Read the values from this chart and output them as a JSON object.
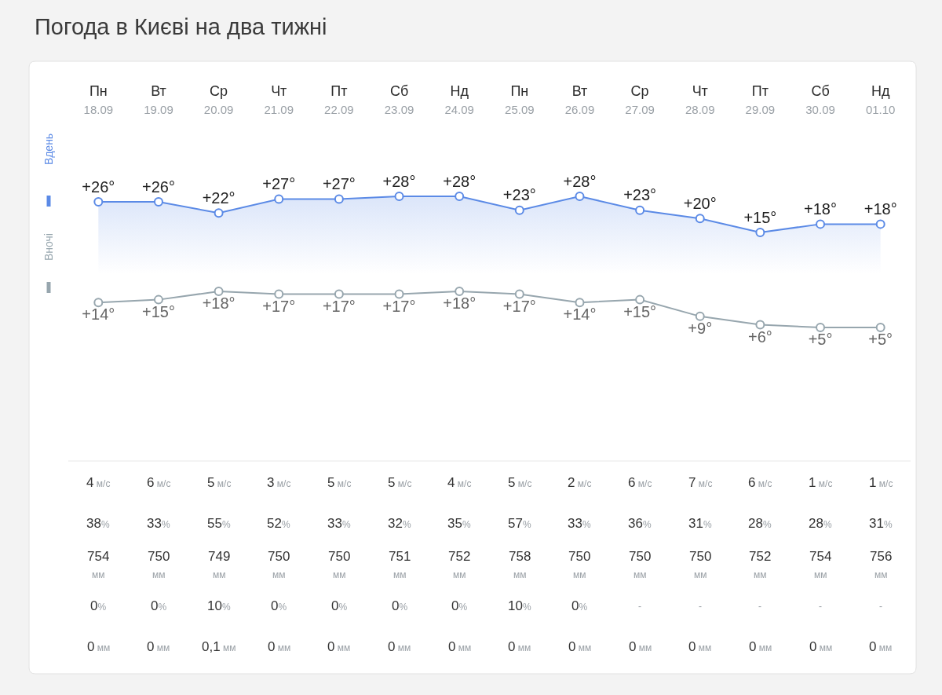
{
  "chart_data": [
    {
      "type": "area",
      "title": "Погода в Києві на два тижні",
      "categories": [
        "Пн\n18.09",
        "Вт\n19.09",
        "Ср\n20.09",
        "Чт\n21.09",
        "Пт\n22.09",
        "Сб\n23.09",
        "Нд\n24.09",
        "Пн\n25.09",
        "Вт\n26.09",
        "Ср\n27.09",
        "Чт\n28.09",
        "Пт\n29.09",
        "Сб\n30.09",
        "Нд\n01.10"
      ],
      "series": [
        {
          "name": "Вдень",
          "color": "#5b8ae6",
          "values": [
            26,
            26,
            22,
            27,
            27,
            28,
            28,
            23,
            28,
            23,
            20,
            15,
            18,
            18
          ],
          "value_labels": [
            "+26°",
            "+26°",
            "+22°",
            "+27°",
            "+27°",
            "+28°",
            "+28°",
            "+23°",
            "+28°",
            "+23°",
            "+20°",
            "+15°",
            "+18°",
            "+18°"
          ]
        }
      ],
      "marker": "circle",
      "line_style": "solid",
      "legend": "left",
      "tick_labels": "x"
    },
    {
      "type": "line",
      "categories": [
        null,
        null,
        null,
        null,
        null,
        null,
        null,
        null,
        null,
        null,
        null,
        null,
        null,
        null
      ],
      "series": [
        {
          "name": "Вночі",
          "color": "#97a6ae",
          "values": [
            14,
            15,
            18,
            17,
            17,
            17,
            18,
            17,
            14,
            15,
            9,
            6,
            5,
            5
          ],
          "value_labels": [
            "+14°",
            "+15°",
            "+18°",
            "+17°",
            "+17°",
            "+17°",
            "+18°",
            "+17°",
            "+14°",
            "+15°",
            "+9°",
            "+6°",
            "+5°",
            "+5°"
          ]
        }
      ],
      "marker": "circle",
      "line_style": "solid",
      "legend": "left",
      "tick_labels": false
    },
    {
      "type": "other",
      "annotations": [
        "4 м/с",
        "6 м/с",
        "5 м/с",
        "3 м/с",
        "5 м/с",
        "5 м/с",
        "4 м/с",
        "5 м/с",
        "2 м/с",
        "6 м/с",
        "7 м/с",
        "6 м/с",
        "1 м/с",
        "1 м/с",
        "38%",
        "33%",
        "55%",
        "52%",
        "33%",
        "32%",
        "35%",
        "57%",
        "33%",
        "36%",
        "31%",
        "28%",
        "28%",
        "31%",
        "754\nмм",
        "750\nмм",
        "749\nмм",
        "750\nмм",
        "750\nмм",
        "751\nмм",
        "752\nмм",
        "758\nмм",
        "750\nмм",
        "750\nмм",
        "750\nмм",
        "752\nмм",
        "754\nмм",
        "756\nмм",
        "0%",
        "0%",
        "10%",
        "0%",
        "0%",
        "0%",
        "0%",
        "10%",
        "0%",
        "-",
        "-",
        "-",
        "-",
        "-",
        "0 мм",
        "0 мм",
        "0,1 мм",
        "0 мм",
        "0 мм",
        "0 мм",
        "0 мм",
        "0 мм",
        "0 мм",
        "0 мм",
        "0 мм",
        "0 мм",
        "0 мм",
        "0 мм"
      ]
    }
  ]
}
